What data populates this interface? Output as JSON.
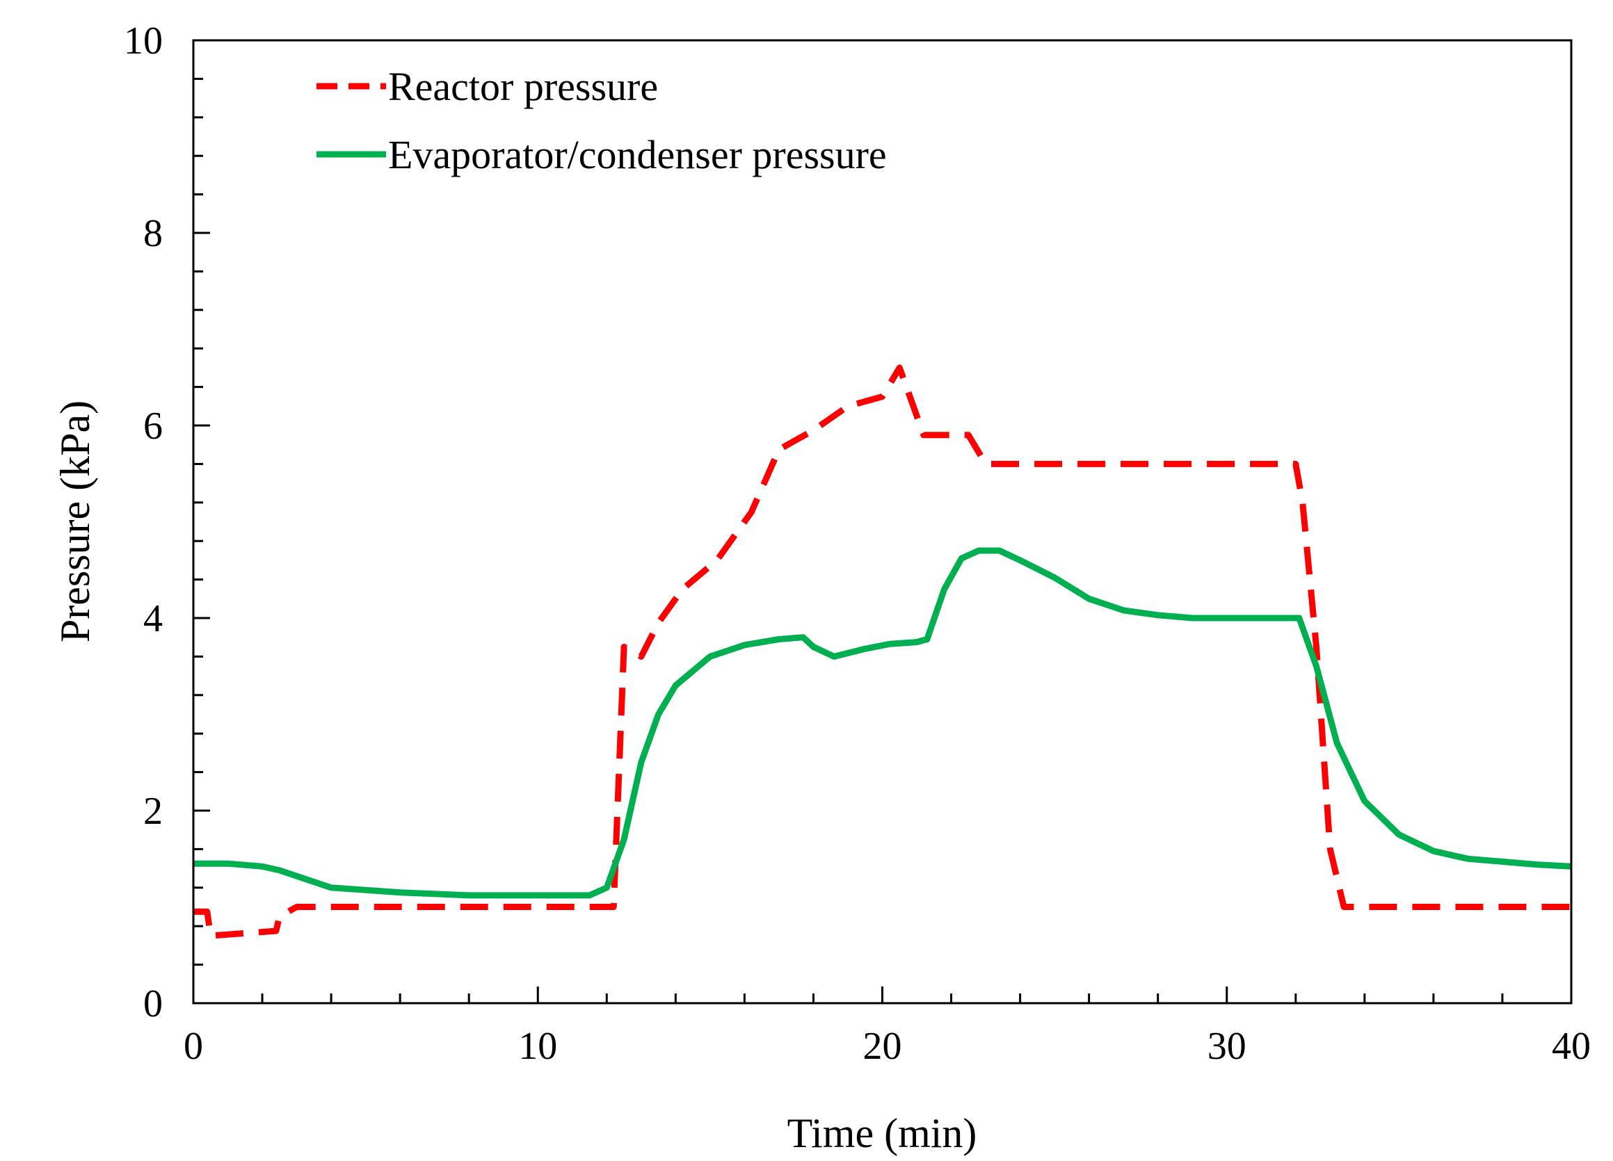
{
  "chart_data": {
    "type": "line",
    "title": "",
    "xlabel": "Time (min)",
    "ylabel": "Pressure (kPa)",
    "xlim": [
      0,
      40
    ],
    "ylim": [
      0,
      10
    ],
    "x_ticks": [
      0,
      10,
      20,
      30,
      40
    ],
    "y_ticks": [
      0,
      2,
      4,
      6,
      8,
      10
    ],
    "x_tick_labels": [
      "0",
      "10",
      "20",
      "30",
      "40"
    ],
    "y_tick_labels": [
      "0",
      "2",
      "4",
      "6",
      "8",
      "10"
    ],
    "grid": false,
    "legend_position": "top-left",
    "series": [
      {
        "name": "Reactor pressure",
        "color": "#ff0000",
        "style": "dashed",
        "x": [
          0,
          0.4,
          0.5,
          2.4,
          2.5,
          3,
          12.2,
          12.5,
          13.0,
          13.5,
          14.2,
          15.2,
          16.2,
          17.0,
          18.0,
          19.0,
          20.0,
          20.5,
          21.2,
          22.5,
          23.0,
          32.0,
          32.2,
          32.6,
          33.0,
          33.4,
          40
        ],
        "values": [
          0.95,
          0.95,
          0.7,
          0.75,
          0.9,
          1.0,
          1.0,
          3.7,
          3.6,
          3.95,
          4.3,
          4.6,
          5.1,
          5.75,
          5.95,
          6.2,
          6.3,
          6.6,
          5.9,
          5.9,
          5.6,
          5.6,
          5.2,
          3.7,
          1.6,
          1.0,
          1.0
        ]
      },
      {
        "name": "Evaporator/condenser pressure",
        "color": "#00b050",
        "style": "solid",
        "x": [
          0,
          1,
          2,
          2.5,
          4,
          6,
          8,
          10,
          11.5,
          12.0,
          12.5,
          13.0,
          13.5,
          14.0,
          15.0,
          16.0,
          17.0,
          17.7,
          18.0,
          18.6,
          19.5,
          20.2,
          21.0,
          21.3,
          21.8,
          22.3,
          22.8,
          23.4,
          24.0,
          25.0,
          26.0,
          27.0,
          28.0,
          29.0,
          30.0,
          31.0,
          32.1,
          32.6,
          33.2,
          34.0,
          35.0,
          36.0,
          37.0,
          38.0,
          39.0,
          40.0
        ],
        "values": [
          1.45,
          1.45,
          1.42,
          1.38,
          1.2,
          1.15,
          1.12,
          1.12,
          1.12,
          1.2,
          1.7,
          2.5,
          3.0,
          3.3,
          3.6,
          3.72,
          3.78,
          3.8,
          3.7,
          3.6,
          3.68,
          3.73,
          3.75,
          3.78,
          4.3,
          4.62,
          4.7,
          4.7,
          4.6,
          4.42,
          4.2,
          4.08,
          4.03,
          4.0,
          4.0,
          4.0,
          4.0,
          3.5,
          2.7,
          2.1,
          1.75,
          1.58,
          1.5,
          1.47,
          1.44,
          1.42
        ]
      }
    ]
  }
}
